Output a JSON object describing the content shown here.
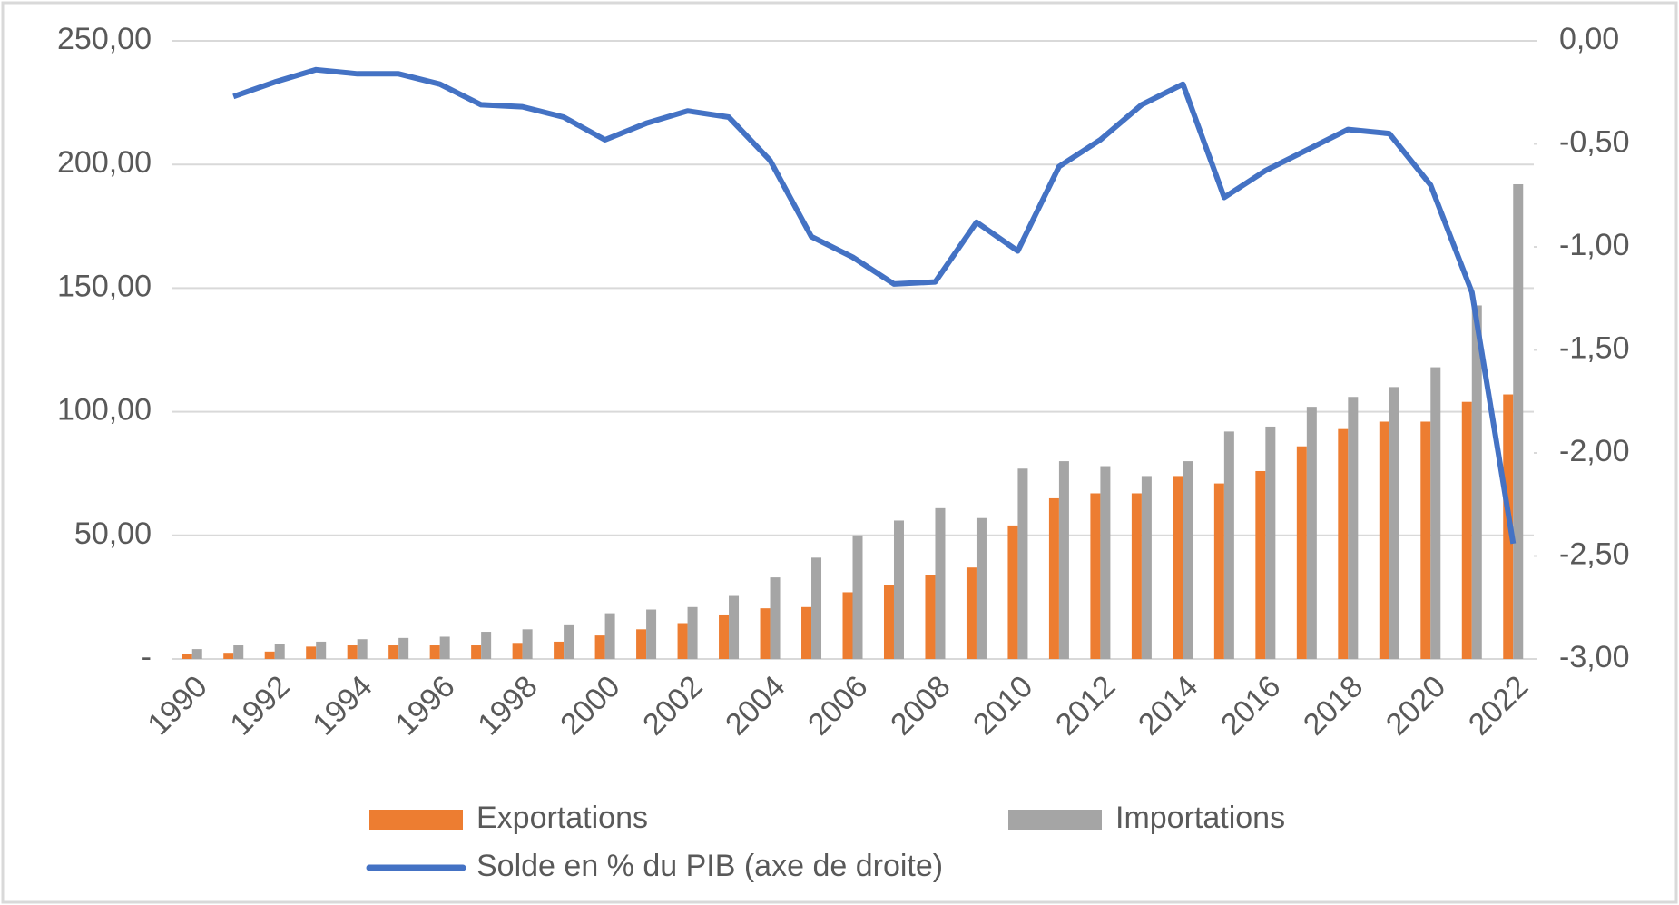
{
  "chart_data": {
    "type": "bar",
    "categories": [
      "1990",
      null,
      "1992",
      null,
      "1994",
      null,
      "1996",
      null,
      "1998",
      null,
      "2000",
      null,
      "2002",
      null,
      "2004",
      null,
      "2006",
      null,
      "2008",
      null,
      "2010",
      null,
      "2012",
      null,
      "2014",
      null,
      "2016",
      null,
      "2018",
      null,
      "2020",
      null,
      "2022"
    ],
    "series": [
      {
        "name": "Exportations",
        "color": "#ed7d31",
        "values": [
          2,
          2.5,
          3,
          5,
          5.5,
          5.5,
          5.5,
          5.5,
          6.5,
          7,
          9.5,
          12,
          14.5,
          18,
          20.5,
          21,
          27,
          30,
          34,
          37,
          54,
          65,
          67,
          67,
          74,
          71,
          76,
          86,
          93,
          96,
          96,
          104,
          107
        ]
      },
      {
        "name": "Importations",
        "color": "#a5a5a5",
        "values": [
          4,
          5.5,
          6,
          7,
          8,
          8.5,
          9,
          11,
          12,
          14,
          18.5,
          20,
          21,
          25.5,
          33,
          41,
          50,
          56,
          61,
          57,
          77,
          80,
          78,
          74,
          80,
          92,
          94,
          102,
          106,
          110,
          118,
          143,
          192
        ]
      },
      {
        "name": "Solde en % du PIB (axe de droite)",
        "color": "#4472c4",
        "type": "line",
        "axis": "y2",
        "values": [
          null,
          -0.27,
          -0.2,
          -0.14,
          -0.16,
          -0.16,
          -0.21,
          -0.31,
          -0.32,
          -0.37,
          -0.48,
          -0.4,
          -0.34,
          -0.37,
          -0.58,
          -0.95,
          -1.05,
          -1.18,
          -1.17,
          -0.88,
          -1.02,
          -0.61,
          -0.48,
          -0.31,
          -0.21,
          -0.76,
          -0.63,
          -0.53,
          -0.43,
          -0.45,
          -0.7,
          -1.22,
          -2.44
        ]
      }
    ],
    "ylim": [
      0,
      250
    ],
    "yticks": [
      {
        "value": 0,
        "label": "-"
      },
      {
        "value": 50,
        "label": "50,00"
      },
      {
        "value": 100,
        "label": "100,00"
      },
      {
        "value": 150,
        "label": "150,00"
      },
      {
        "value": 200,
        "label": "200,00"
      },
      {
        "value": 250,
        "label": "250,00"
      }
    ],
    "y2lim": [
      -3,
      0
    ],
    "y2ticks": [
      {
        "value": -3,
        "label": "-3,00"
      },
      {
        "value": -2.5,
        "label": "-2,50"
      },
      {
        "value": -2,
        "label": "-2,00"
      },
      {
        "value": -1.5,
        "label": "-1,50"
      },
      {
        "value": -1,
        "label": "-1,00"
      },
      {
        "value": -0.5,
        "label": "-0,50"
      },
      {
        "value": 0,
        "label": "0,00"
      }
    ],
    "grid": true,
    "legend": "bottom"
  }
}
